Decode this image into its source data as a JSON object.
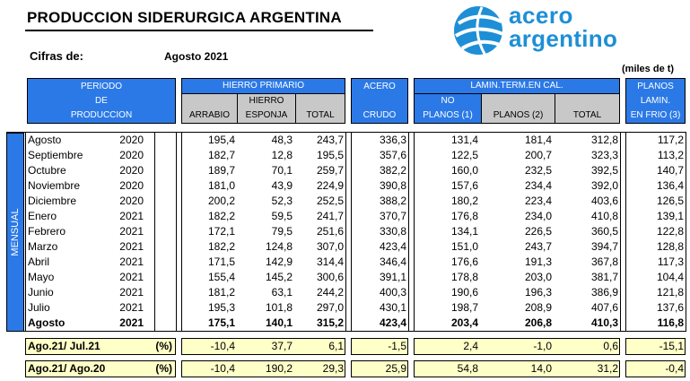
{
  "title": "PRODUCCION SIDERURGICA ARGENTINA",
  "cifras_label": "Cifras de:",
  "cifras_value": "Agosto 2021",
  "units": "(miles de t)",
  "logo": {
    "line1": "acero",
    "line2": "argentino"
  },
  "headers": {
    "periodo": [
      "PERIODO",
      "DE",
      "PRODUCCION"
    ],
    "hierro_primario": "HIERRO PRIMARIO",
    "arrabio": "ARRABIO",
    "hierro_esponja": [
      "HIERRO",
      "ESPONJA"
    ],
    "total": "TOTAL",
    "acero": "ACERO",
    "crudo": "CRUDO",
    "lamin_term": "LAMIN.TERM.EN CAL.",
    "no_planos": [
      "NO",
      "PLANOS (1)"
    ],
    "planos": "PLANOS (2)",
    "total2": "TOTAL",
    "planos_lamin": [
      "PLANOS",
      "LAMIN.",
      "EN FRIO (3)"
    ]
  },
  "side_label": "MENSUAL",
  "rows": [
    {
      "month": "Agosto",
      "year": "2020",
      "arrabio": "195,4",
      "esponja": "48,3",
      "total_h": "243,7",
      "acero": "336,3",
      "no_planos": "131,4",
      "planos": "181,4",
      "total_l": "312,8",
      "frio": "117,2"
    },
    {
      "month": "Septiembre",
      "year": "2020",
      "arrabio": "182,7",
      "esponja": "12,8",
      "total_h": "195,5",
      "acero": "357,6",
      "no_planos": "122,5",
      "planos": "200,7",
      "total_l": "323,3",
      "frio": "113,2"
    },
    {
      "month": "Octubre",
      "year": "2020",
      "arrabio": "189,7",
      "esponja": "70,1",
      "total_h": "259,7",
      "acero": "382,2",
      "no_planos": "160,0",
      "planos": "232,5",
      "total_l": "392,5",
      "frio": "140,7"
    },
    {
      "month": "Noviembre",
      "year": "2020",
      "arrabio": "181,0",
      "esponja": "43,9",
      "total_h": "224,9",
      "acero": "390,8",
      "no_planos": "157,6",
      "planos": "234,4",
      "total_l": "392,0",
      "frio": "136,4"
    },
    {
      "month": "Diciembre",
      "year": "2020",
      "arrabio": "200,2",
      "esponja": "52,3",
      "total_h": "252,5",
      "acero": "388,2",
      "no_planos": "180,2",
      "planos": "223,4",
      "total_l": "403,6",
      "frio": "126,5"
    },
    {
      "month": "Enero",
      "year": "2021",
      "arrabio": "182,2",
      "esponja": "59,5",
      "total_h": "241,7",
      "acero": "370,7",
      "no_planos": "176,8",
      "planos": "234,0",
      "total_l": "410,8",
      "frio": "139,1"
    },
    {
      "month": "Febrero",
      "year": "2021",
      "arrabio": "172,1",
      "esponja": "79,5",
      "total_h": "251,6",
      "acero": "330,8",
      "no_planos": "134,1",
      "planos": "226,5",
      "total_l": "360,5",
      "frio": "122,8"
    },
    {
      "month": "Marzo",
      "year": "2021",
      "arrabio": "182,2",
      "esponja": "124,8",
      "total_h": "307,0",
      "acero": "423,4",
      "no_planos": "151,0",
      "planos": "243,7",
      "total_l": "394,7",
      "frio": "128,8"
    },
    {
      "month": "Abril",
      "year": "2021",
      "arrabio": "171,5",
      "esponja": "142,9",
      "total_h": "314,4",
      "acero": "346,4",
      "no_planos": "176,6",
      "planos": "191,3",
      "total_l": "367,8",
      "frio": "117,3"
    },
    {
      "month": "Mayo",
      "year": "2021",
      "arrabio": "155,4",
      "esponja": "145,2",
      "total_h": "300,6",
      "acero": "391,1",
      "no_planos": "178,8",
      "planos": "203,0",
      "total_l": "381,7",
      "frio": "104,4"
    },
    {
      "month": "Junio",
      "year": "2021",
      "arrabio": "181,2",
      "esponja": "63,1",
      "total_h": "244,2",
      "acero": "400,3",
      "no_planos": "190,6",
      "planos": "196,3",
      "total_l": "386,9",
      "frio": "121,8"
    },
    {
      "month": "Julio",
      "year": "2021",
      "arrabio": "195,3",
      "esponja": "101,8",
      "total_h": "297,0",
      "acero": "430,1",
      "no_planos": "198,7",
      "planos": "208,9",
      "total_l": "407,6",
      "frio": "137,6"
    },
    {
      "month": "Agosto",
      "year": "2021",
      "arrabio": "175,1",
      "esponja": "140,1",
      "total_h": "315,2",
      "acero": "423,4",
      "no_planos": "203,4",
      "planos": "206,8",
      "total_l": "410,3",
      "frio": "116,8"
    }
  ],
  "comparisons": [
    {
      "label": "Ago.21/ Jul.21",
      "unit": "(%)",
      "arrabio": "-10,4",
      "esponja": "37,7",
      "total_h": "6,1",
      "acero": "-1,5",
      "no_planos": "2,4",
      "planos": "-1,0",
      "total_l": "0,6",
      "frio": "-15,1"
    },
    {
      "label": "Ago.21/ Ago.20",
      "unit": "(%)",
      "arrabio": "-10,4",
      "esponja": "190,2",
      "total_h": "29,3",
      "acero": "25,9",
      "no_planos": "54,8",
      "planos": "14,0",
      "total_l": "31,2",
      "frio": "-0,4"
    }
  ],
  "colors": {
    "header_blue": "#2b79e6",
    "header_gray": "#c8c8c8",
    "highlight_yellow": "#ffffc8",
    "logo_blue": "#1e8fd6"
  }
}
